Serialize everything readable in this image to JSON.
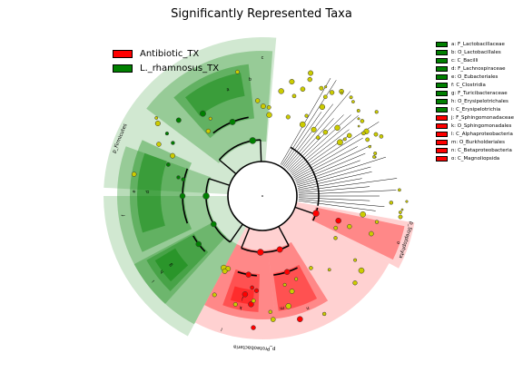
{
  "title": "Significantly Represented Taxa",
  "colors": {
    "Antibiotic_TX": "#ff0000",
    "L._rhamnosus_TX": "#008000",
    "non_significant": "#cccc00"
  },
  "legend": [
    {
      "label": "Antibiotic_TX",
      "color": "#ff0000"
    },
    {
      "label": "L._rhamnosus_TX",
      "color": "#008000"
    }
  ],
  "chart_data": {
    "type": "cladogram",
    "title": "Significantly Represented Taxa",
    "groups": [
      "Antibiotic_TX",
      "L._rhamnosus_TX"
    ],
    "taxa": [
      {
        "key": "a",
        "name": "F_Lactobacillaceae",
        "group": "L._rhamnosus_TX"
      },
      {
        "key": "b",
        "name": "O_Lactobacillales",
        "group": "L._rhamnosus_TX"
      },
      {
        "key": "c",
        "name": "C_Bacilli",
        "group": "L._rhamnosus_TX"
      },
      {
        "key": "d",
        "name": "F_Lachnospiraceae",
        "group": "L._rhamnosus_TX"
      },
      {
        "key": "e",
        "name": "O_Eubacteriales",
        "group": "L._rhamnosus_TX"
      },
      {
        "key": "f",
        "name": "C_Clostridia",
        "group": "L._rhamnosus_TX"
      },
      {
        "key": "g",
        "name": "F_Turicibacteraceae",
        "group": "L._rhamnosus_TX"
      },
      {
        "key": "h",
        "name": "O_Erysipelotrichales",
        "group": "L._rhamnosus_TX"
      },
      {
        "key": "i",
        "name": "C_Erysipelotrichia",
        "group": "L._rhamnosus_TX"
      },
      {
        "key": "j",
        "name": "F_Sphingomonadaceae",
        "group": "Antibiotic_TX"
      },
      {
        "key": "k",
        "name": "O_Sphingomonadales",
        "group": "Antibiotic_TX"
      },
      {
        "key": "l",
        "name": "C_Alphaproteobacteria",
        "group": "Antibiotic_TX"
      },
      {
        "key": "m",
        "name": "O_Burkholderiales",
        "group": "Antibiotic_TX"
      },
      {
        "key": "n",
        "name": "C_Betaproteobacteria",
        "group": "Antibiotic_TX"
      },
      {
        "key": "o",
        "name": "C_Magnoliopsida",
        "group": "Antibiotic_TX"
      }
    ],
    "phyla": [
      {
        "name": "p_Firmicutes",
        "group": "L._rhamnosus_TX"
      },
      {
        "name": "p_Proteobacteria",
        "group": "Antibiotic_TX"
      },
      {
        "name": "p_Streptophyta",
        "group": "Antibiotic_TX"
      }
    ]
  }
}
